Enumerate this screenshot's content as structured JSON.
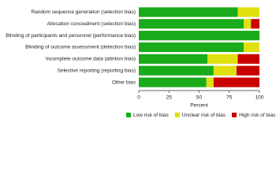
{
  "chart_data": {
    "type": "stacked-bar-horizontal",
    "categories": [
      "Random sequence generation (selection bias)",
      "Allocation concealment (selection bias)",
      "Blinding of participants and personnel (performance bias)",
      "Blinding of outcome assessment (detection bias)",
      "Incomplete outcome data (attrition bias)",
      "Selective reporting (reporting bias)",
      "Other bias"
    ],
    "series": [
      {
        "name": "Low risk of bias",
        "color": "#1aab1a",
        "values": [
          82,
          87,
          100,
          87,
          57,
          62,
          56
        ]
      },
      {
        "name": "Unclear risk of bias",
        "color": "#e0e010",
        "values": [
          18,
          6,
          0,
          13,
          25,
          19,
          6
        ]
      },
      {
        "name": "High risk of bias",
        "color": "#c80000",
        "values": [
          0,
          7,
          0,
          0,
          18,
          19,
          38
        ]
      }
    ],
    "xlabel": "Percent",
    "xlim": [
      0,
      100
    ],
    "xticks": [
      0,
      25,
      50,
      75,
      100
    ]
  }
}
